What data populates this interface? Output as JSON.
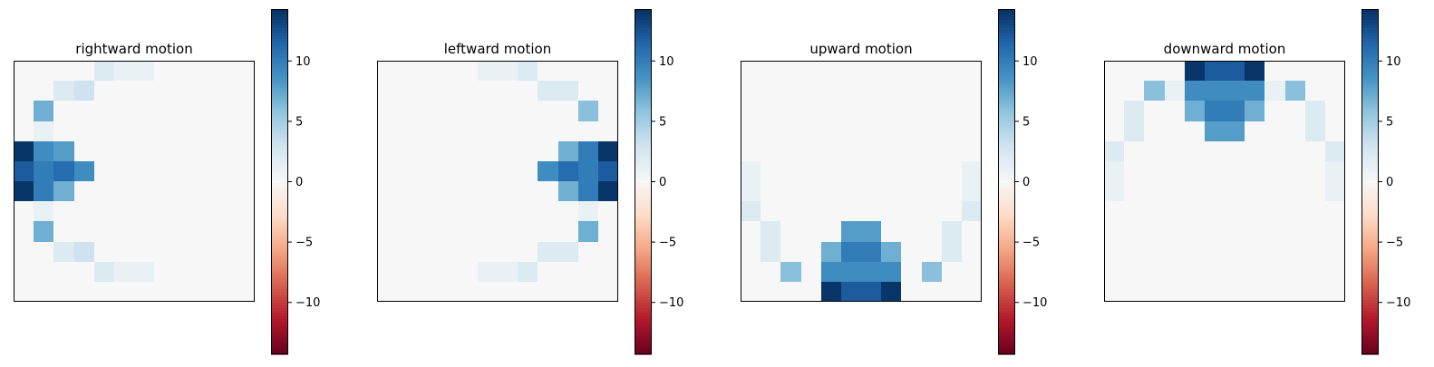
{
  "figure": {
    "colormap": "RdBu",
    "colors": {
      "background": "#ffffff",
      "axes_edge": "#000000",
      "text": "#000000"
    }
  },
  "chart_data": [
    {
      "type": "heatmap",
      "title": "rightward motion",
      "grid_size": [
        12,
        12
      ],
      "color_range": [
        -14.3,
        14.3
      ],
      "colorbar_ticks": [
        -10,
        -5,
        0,
        5,
        10
      ],
      "colorbar_tick_labels": [
        "−10",
        "−5",
        "0",
        "5",
        "10"
      ],
      "values": [
        [
          0,
          0,
          0,
          0,
          2,
          1,
          1,
          0,
          0,
          0,
          0,
          0
        ],
        [
          0,
          0,
          2,
          3,
          0,
          0,
          0,
          0,
          0,
          0,
          0,
          0
        ],
        [
          0,
          7,
          0,
          0,
          0,
          0,
          0,
          0,
          0,
          0,
          0,
          0
        ],
        [
          0,
          1,
          0,
          0,
          0,
          0,
          0,
          0,
          0,
          0,
          0,
          0
        ],
        [
          14,
          9,
          8,
          0,
          0,
          0,
          0,
          0,
          0,
          0,
          0,
          0
        ],
        [
          12,
          10,
          11,
          9,
          0,
          0,
          0,
          0,
          0,
          0,
          0,
          0
        ],
        [
          14,
          10,
          7,
          0,
          0,
          0,
          0,
          0,
          0,
          0,
          0,
          0
        ],
        [
          0,
          1,
          0,
          0,
          0,
          0,
          0,
          0,
          0,
          0,
          0,
          0
        ],
        [
          0,
          7,
          0,
          0,
          0,
          0,
          0,
          0,
          0,
          0,
          0,
          0
        ],
        [
          0,
          0,
          2,
          3,
          0,
          0,
          0,
          0,
          0,
          0,
          0,
          0
        ],
        [
          0,
          0,
          0,
          0,
          2,
          1,
          1,
          0,
          0,
          0,
          0,
          0
        ],
        [
          0,
          0,
          0,
          0,
          0,
          0,
          0,
          0,
          0,
          0,
          0,
          0
        ]
      ]
    },
    {
      "type": "heatmap",
      "title": "leftward motion",
      "grid_size": [
        12,
        12
      ],
      "color_range": [
        -14.3,
        14.3
      ],
      "colorbar_ticks": [
        -10,
        -5,
        0,
        5,
        10
      ],
      "colorbar_tick_labels": [
        "−10",
        "−5",
        "0",
        "5",
        "10"
      ],
      "values": [
        [
          0,
          0,
          0,
          0,
          0,
          1,
          1,
          2,
          0,
          0,
          0,
          0
        ],
        [
          0,
          0,
          0,
          0,
          0,
          0,
          0,
          0,
          2,
          2,
          0,
          0
        ],
        [
          0,
          0,
          0,
          0,
          0,
          0,
          0,
          0,
          0,
          0,
          6,
          0
        ],
        [
          0,
          0,
          0,
          0,
          0,
          0,
          0,
          0,
          0,
          0,
          0,
          0
        ],
        [
          0,
          0,
          0,
          0,
          0,
          0,
          0,
          0,
          0,
          7,
          10,
          14
        ],
        [
          0,
          0,
          0,
          0,
          0,
          0,
          0,
          0,
          9,
          11,
          10,
          12
        ],
        [
          0,
          0,
          0,
          0,
          0,
          0,
          0,
          0,
          0,
          7,
          10,
          14
        ],
        [
          0,
          0,
          0,
          0,
          0,
          0,
          0,
          0,
          0,
          0,
          1,
          0
        ],
        [
          0,
          0,
          0,
          0,
          0,
          0,
          0,
          0,
          0,
          0,
          7,
          0
        ],
        [
          0,
          0,
          0,
          0,
          0,
          0,
          0,
          0,
          2,
          2,
          0,
          0
        ],
        [
          0,
          0,
          0,
          0,
          0,
          1,
          1,
          2,
          0,
          0,
          0,
          0
        ],
        [
          0,
          0,
          0,
          0,
          0,
          0,
          0,
          0,
          0,
          0,
          0,
          0
        ]
      ]
    },
    {
      "type": "heatmap",
      "title": "upward motion",
      "grid_size": [
        12,
        12
      ],
      "color_range": [
        -14.3,
        14.3
      ],
      "colorbar_ticks": [
        -10,
        -5,
        0,
        5,
        10
      ],
      "colorbar_tick_labels": [
        "−10",
        "−5",
        "0",
        "5",
        "10"
      ],
      "values": [
        [
          0,
          0,
          0,
          0,
          0,
          0,
          0,
          0,
          0,
          0,
          0,
          0
        ],
        [
          0,
          0,
          0,
          0,
          0,
          0,
          0,
          0,
          0,
          0,
          0,
          0
        ],
        [
          0,
          0,
          0,
          0,
          0,
          0,
          0,
          0,
          0,
          0,
          0,
          0
        ],
        [
          0,
          0,
          0,
          0,
          0,
          0,
          0,
          0,
          0,
          0,
          0,
          0
        ],
        [
          0,
          0,
          0,
          0,
          0,
          0,
          0,
          0,
          0,
          0,
          0,
          0
        ],
        [
          1,
          0,
          0,
          0,
          0,
          0,
          0,
          0,
          0,
          0,
          0,
          1
        ],
        [
          1,
          0,
          0,
          0,
          0,
          0,
          0,
          0,
          0,
          0,
          0,
          1
        ],
        [
          2,
          0,
          0,
          0,
          0,
          0,
          0,
          0,
          0,
          0,
          0,
          2
        ],
        [
          0,
          2,
          0,
          0,
          0,
          8,
          8,
          0,
          0,
          0,
          2,
          0
        ],
        [
          0,
          2,
          0,
          0,
          7,
          10,
          10,
          7,
          0,
          0,
          2,
          0
        ],
        [
          0,
          0,
          6,
          0,
          9,
          9,
          9,
          9,
          0,
          6,
          0,
          0
        ],
        [
          0,
          0,
          0,
          0,
          14,
          12,
          12,
          14,
          0,
          0,
          0,
          0
        ]
      ]
    },
    {
      "type": "heatmap",
      "title": "downward motion",
      "grid_size": [
        12,
        12
      ],
      "color_range": [
        -14.3,
        14.3
      ],
      "colorbar_ticks": [
        -10,
        -5,
        0,
        5,
        10
      ],
      "colorbar_tick_labels": [
        "−10",
        "−5",
        "0",
        "5",
        "10"
      ],
      "values": [
        [
          0,
          0,
          0,
          0,
          14,
          12,
          12,
          14,
          0,
          0,
          0,
          0
        ],
        [
          0,
          0,
          6,
          1,
          9,
          9,
          9,
          9,
          1,
          6,
          0,
          0
        ],
        [
          0,
          2,
          0,
          0,
          7,
          10,
          10,
          7,
          0,
          0,
          2,
          0
        ],
        [
          0,
          2,
          0,
          0,
          0,
          8,
          8,
          0,
          0,
          0,
          2,
          0
        ],
        [
          2,
          0,
          0,
          0,
          0,
          0,
          0,
          0,
          0,
          0,
          0,
          2
        ],
        [
          1,
          0,
          0,
          0,
          0,
          0,
          0,
          0,
          0,
          0,
          0,
          1
        ],
        [
          1,
          0,
          0,
          0,
          0,
          0,
          0,
          0,
          0,
          0,
          0,
          1
        ],
        [
          0,
          0,
          0,
          0,
          0,
          0,
          0,
          0,
          0,
          0,
          0,
          0
        ],
        [
          0,
          0,
          0,
          0,
          0,
          0,
          0,
          0,
          0,
          0,
          0,
          0
        ],
        [
          0,
          0,
          0,
          0,
          0,
          0,
          0,
          0,
          0,
          0,
          0,
          0
        ],
        [
          0,
          0,
          0,
          0,
          0,
          0,
          0,
          0,
          0,
          0,
          0,
          0
        ],
        [
          0,
          0,
          0,
          0,
          0,
          0,
          0,
          0,
          0,
          0,
          0,
          0
        ]
      ]
    }
  ]
}
